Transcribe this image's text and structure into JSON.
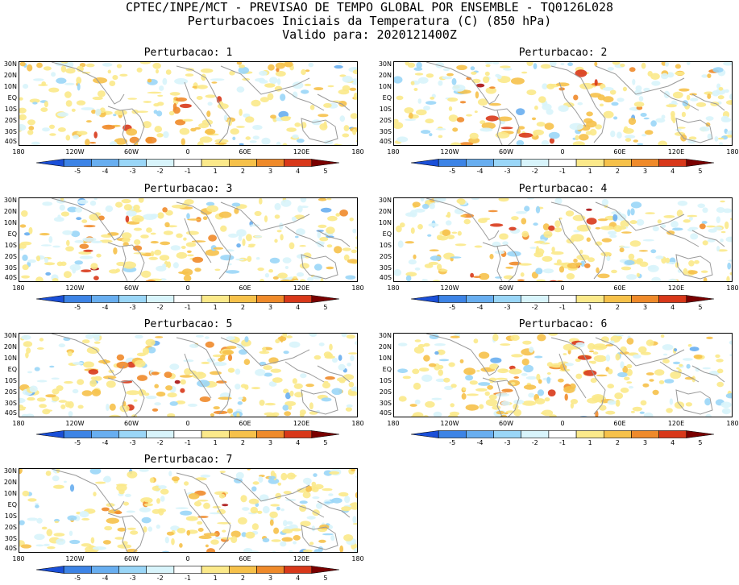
{
  "header": {
    "line1": "CPTEC/INPE/MCT - PREVISAO DE TEMPO GLOBAL POR ENSEMBLE - TQ0126L028",
    "line2": "Perturbacoes Iniciais da Temperatura (C) (850 hPa)",
    "line3": "Valido para: 2020121400Z"
  },
  "panels": [
    {
      "title": "Perturbacao: 1"
    },
    {
      "title": "Perturbacao: 2"
    },
    {
      "title": "Perturbacao: 3"
    },
    {
      "title": "Perturbacao: 4"
    },
    {
      "title": "Perturbacao: 5"
    },
    {
      "title": "Perturbacao: 6"
    },
    {
      "title": "Perturbacao: 7"
    }
  ],
  "axes": {
    "lat_labels": [
      "30N",
      "20N",
      "10N",
      "EQ",
      "10S",
      "20S",
      "30S",
      "40S"
    ],
    "lon_labels": [
      "180",
      "120W",
      "60W",
      "0",
      "60E",
      "120E",
      "180"
    ]
  },
  "colorbar": {
    "labels": [
      "-5",
      "-4",
      "-3",
      "-2",
      "-1",
      "1",
      "2",
      "3",
      "4",
      "5"
    ],
    "colors": [
      "#1a4fd8",
      "#3d84e6",
      "#68aef0",
      "#9ad6f7",
      "#d8f4fb",
      "#ffffff",
      "#fbe98a",
      "#f6c14a",
      "#ef8a2a",
      "#d8381a",
      "#a80f0f",
      "#7a0000"
    ]
  }
}
